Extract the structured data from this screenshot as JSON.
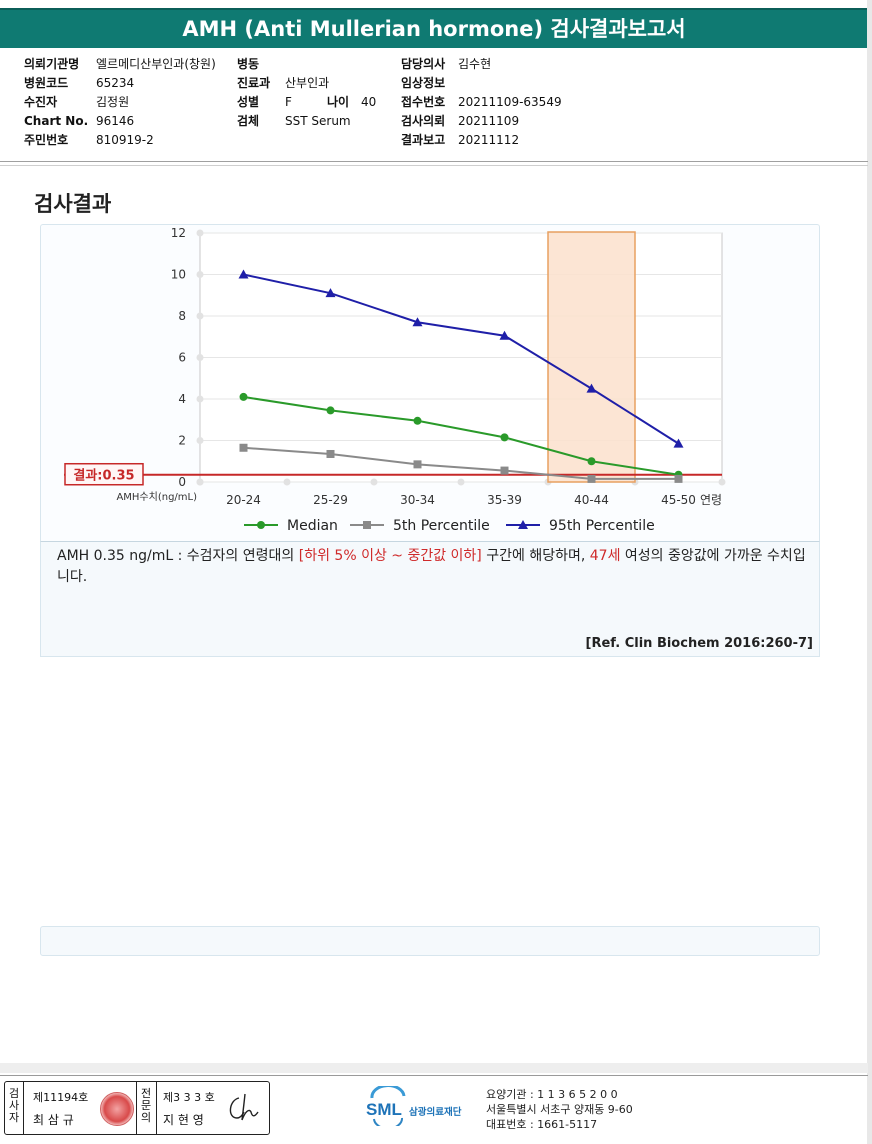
{
  "report": {
    "title": "AMH (Anti Mullerian hormone) 검사결과보고서",
    "col1": [
      {
        "label": "의뢰기관명",
        "value": "엘르메디산부인과(창원)"
      },
      {
        "label": "병원코드",
        "value": "65234"
      },
      {
        "label": "수진자",
        "value": "김정원"
      },
      {
        "label": "Chart No.",
        "value": "96146"
      },
      {
        "label": "주민번호",
        "value": "810919-2"
      }
    ],
    "col2": {
      "ward_label": "병동",
      "ward_value": "",
      "dept_label": "진료과",
      "dept_value": "산부인과",
      "sex_label": "성별",
      "sex_value": "F",
      "age_label": "나이",
      "age_value": "40",
      "specimen_label": "검체",
      "specimen_value": "SST Serum"
    },
    "col3": [
      {
        "label": "담당의사",
        "value": "김수현"
      },
      {
        "label": "임상정보",
        "value": ""
      },
      {
        "label": "접수번호",
        "value": "20211109-63549"
      },
      {
        "label": "검사의뢰",
        "value": "20211109"
      },
      {
        "label": "결과보고",
        "value": "20211112"
      }
    ]
  },
  "section_title": "검사결과",
  "chart_data": {
    "type": "line",
    "categories": [
      "20-24",
      "25-29",
      "30-34",
      "35-39",
      "40-44",
      "45-50"
    ],
    "x_axis_suffix": "연령",
    "y_unit_label": "AMH수치(ng/mL)",
    "ylim": [
      0,
      12
    ],
    "yticks": [
      0,
      2,
      4,
      6,
      8,
      10,
      12
    ],
    "series": [
      {
        "name": "Median",
        "color": "#2a9a2a",
        "marker": "circle",
        "values": [
          4.1,
          3.45,
          2.95,
          2.15,
          1.0,
          0.35
        ]
      },
      {
        "name": "5th Percentile",
        "color": "#8a8a8a",
        "marker": "square",
        "values": [
          1.65,
          1.35,
          0.85,
          0.55,
          0.15,
          0.15
        ]
      },
      {
        "name": "95th Percentile",
        "color": "#1f1fa8",
        "marker": "triangle",
        "values": [
          10.0,
          9.1,
          7.7,
          7.05,
          4.5,
          1.85
        ]
      }
    ],
    "result": {
      "label": "결과:0.35",
      "value": 0.35,
      "color": "#c62828"
    },
    "highlight_category": "40-44",
    "grid": true,
    "legend_position": "bottom"
  },
  "interpretation": {
    "part1": "AMH  0.35 ng/mL : 수검자의 연령대의 ",
    "range": "[하위 5% 이상 ~ 중간값 이하]",
    "part2": "  구간에 해당하며, ",
    "age": "47세",
    "part3": " 여성의 중앙값에 가까운 수치입니다.",
    "reference": "[Ref. Clin Biochem 2016:260-7]"
  },
  "footer": {
    "inspector_label": "검사자",
    "inspector_license": "제11194호",
    "inspector_name": "최 삼 규",
    "confirmer_label": "전문의",
    "confirmer_license": "제3 3 3 호",
    "confirmer_name": "지 현 영",
    "org_logo": "SML",
    "org_name": "삼광의료재단",
    "code_line": "요양기관 : 1 1 3 6 5 2 0 0",
    "address_line": "서울특별시 서초구 양재동 9-60",
    "phone_line": "대표번호 : 1661-5117"
  }
}
